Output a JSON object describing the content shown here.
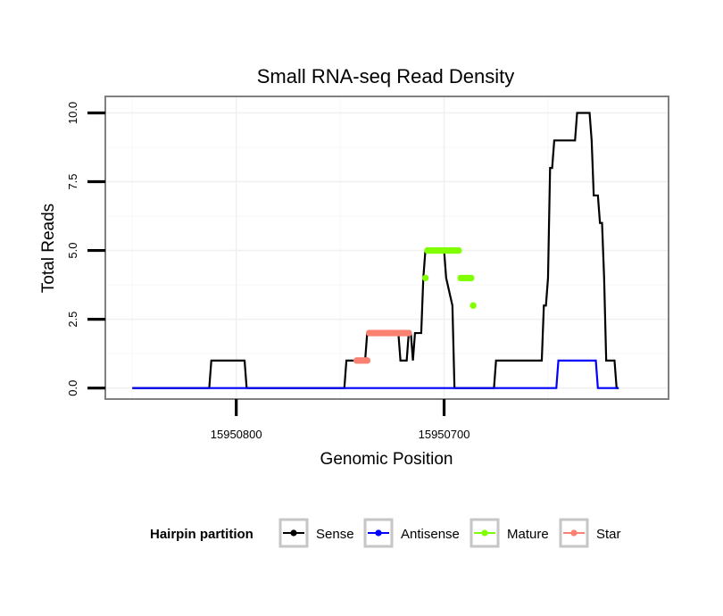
{
  "chart_data": {
    "type": "line",
    "title": "Small RNA-seq Read Density",
    "xlabel": "Genomic Position",
    "ylabel": "Total Reads",
    "x_reversed": true,
    "xlim": [
      15950863,
      15950592
    ],
    "ylim": [
      -0.4,
      10.6
    ],
    "x_ticks": [
      15950800,
      15950700
    ],
    "x_tick_labels": [
      "15950800",
      "15950700"
    ],
    "y_ticks": [
      0,
      2.5,
      5,
      7.5,
      10
    ],
    "y_tick_labels": [
      "0.0",
      "2.5",
      "5.0",
      "7.5",
      "10.0"
    ],
    "grid": true,
    "legend": {
      "title": "Hairpin partition",
      "position": "bottom",
      "entries": [
        {
          "name": "Sense",
          "color": "#000000"
        },
        {
          "name": "Antisense",
          "color": "#0000ff"
        },
        {
          "name": "Mature",
          "color": "#7fff00"
        },
        {
          "name": "Star",
          "color": "#fa8072"
        }
      ]
    },
    "series": [
      {
        "name": "Sense",
        "color": "#000000",
        "style": "line",
        "points": [
          [
            15950850,
            0
          ],
          [
            15950813,
            0
          ],
          [
            15950812,
            1
          ],
          [
            15950796,
            1
          ],
          [
            15950795,
            0
          ],
          [
            15950748,
            0
          ],
          [
            15950747,
            1
          ],
          [
            15950738,
            1
          ],
          [
            15950737,
            2
          ],
          [
            15950722,
            2
          ],
          [
            15950721,
            1
          ],
          [
            15950718,
            1
          ],
          [
            15950717,
            2
          ],
          [
            15950716,
            2
          ],
          [
            15950715,
            1
          ],
          [
            15950714,
            2
          ],
          [
            15950711,
            2
          ],
          [
            15950710,
            4
          ],
          [
            15950709,
            5
          ],
          [
            15950700,
            5
          ],
          [
            15950699,
            4
          ],
          [
            15950696,
            3
          ],
          [
            15950695,
            0
          ],
          [
            15950676,
            0
          ],
          [
            15950675,
            1
          ],
          [
            15950653,
            1
          ],
          [
            15950652,
            3
          ],
          [
            15950651,
            3
          ],
          [
            15950650,
            4
          ],
          [
            15950649,
            8
          ],
          [
            15950648,
            8
          ],
          [
            15950647,
            9
          ],
          [
            15950637,
            9
          ],
          [
            15950636,
            10
          ],
          [
            15950630,
            10
          ],
          [
            15950629,
            9
          ],
          [
            15950628,
            7
          ],
          [
            15950626,
            7
          ],
          [
            15950625,
            6
          ],
          [
            15950624,
            6
          ],
          [
            15950623,
            4
          ],
          [
            15950622,
            1
          ],
          [
            15950618,
            1
          ],
          [
            15950617,
            0
          ],
          [
            15950616,
            0
          ]
        ]
      },
      {
        "name": "Antisense",
        "color": "#0000ff",
        "style": "line",
        "points": [
          [
            15950850,
            0
          ],
          [
            15950646,
            0
          ],
          [
            15950645,
            1
          ],
          [
            15950627,
            1
          ],
          [
            15950626,
            0
          ],
          [
            15950616,
            0
          ]
        ]
      },
      {
        "name": "Star",
        "color": "#fa8072",
        "style": "points",
        "points": [
          [
            15950742,
            1
          ],
          [
            15950741,
            1
          ],
          [
            15950740,
            1
          ],
          [
            15950739,
            1
          ],
          [
            15950738,
            1
          ],
          [
            15950737,
            1
          ],
          [
            15950736,
            2
          ],
          [
            15950735,
            2
          ],
          [
            15950734,
            2
          ],
          [
            15950733,
            2
          ],
          [
            15950732,
            2
          ],
          [
            15950731,
            2
          ],
          [
            15950730,
            2
          ],
          [
            15950729,
            2
          ],
          [
            15950728,
            2
          ],
          [
            15950727,
            2
          ],
          [
            15950726,
            2
          ],
          [
            15950725,
            2
          ],
          [
            15950724,
            2
          ],
          [
            15950723,
            2
          ],
          [
            15950722,
            2
          ],
          [
            15950721,
            2
          ],
          [
            15950720,
            2
          ],
          [
            15950719,
            2
          ],
          [
            15950718,
            2
          ],
          [
            15950717,
            2
          ]
        ]
      },
      {
        "name": "Mature",
        "color": "#7fff00",
        "style": "points",
        "points": [
          [
            15950709,
            4
          ],
          [
            15950708,
            5
          ],
          [
            15950707,
            5
          ],
          [
            15950706,
            5
          ],
          [
            15950705,
            5
          ],
          [
            15950704,
            5
          ],
          [
            15950703,
            5
          ],
          [
            15950702,
            5
          ],
          [
            15950701,
            5
          ],
          [
            15950700,
            5
          ],
          [
            15950699,
            5
          ],
          [
            15950698,
            5
          ],
          [
            15950697,
            5
          ],
          [
            15950696,
            5
          ],
          [
            15950695,
            5
          ],
          [
            15950694,
            5
          ],
          [
            15950693,
            5
          ],
          [
            15950692,
            4
          ],
          [
            15950691,
            4
          ],
          [
            15950690,
            4
          ],
          [
            15950689,
            4
          ],
          [
            15950688,
            4
          ],
          [
            15950687,
            4
          ],
          [
            15950686,
            3
          ]
        ]
      }
    ]
  }
}
